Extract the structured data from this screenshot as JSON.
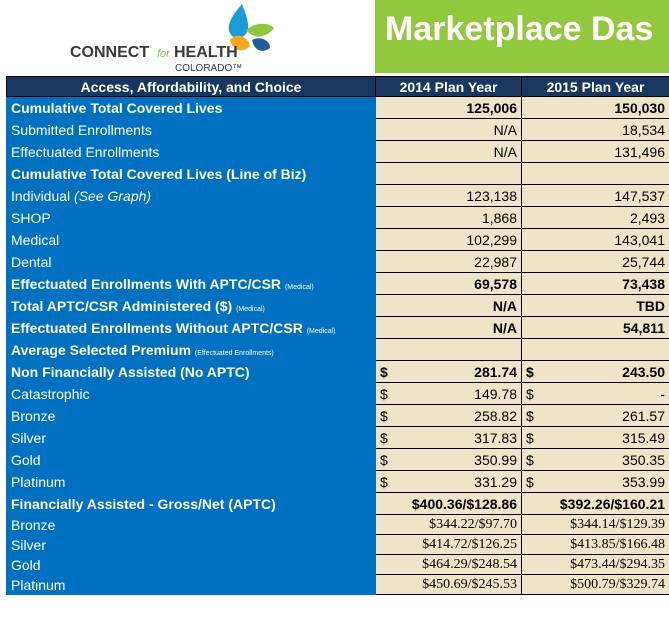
{
  "header": {
    "logo": {
      "connect": "CONNECT",
      "for": "for",
      "health": "HEALTH",
      "colorado": "COLORADO™"
    },
    "title": "Marketplace Das"
  },
  "table": {
    "columns": [
      "Access, Affordability, and Choice",
      "2014 Plan Year",
      "2015 Plan Year"
    ],
    "rows": [
      {
        "label": "Cumulative Total Covered Lives",
        "values": [
          "125,006",
          "150,030"
        ]
      },
      {
        "label": "Submitted Enrollments",
        "values": [
          "N/A",
          "18,534"
        ]
      },
      {
        "label": "Effectuated Enrollments",
        "values": [
          "N/A",
          "131,496"
        ]
      },
      {
        "label": "Cumulative Total Covered Lives (Line of Biz)"
      },
      {
        "label": "Individual",
        "label_italic": "(See Graph)",
        "values": [
          "123,138",
          "147,537"
        ]
      },
      {
        "label": "SHOP",
        "values": [
          "1,868",
          "2,493"
        ]
      },
      {
        "label": "Medical",
        "values": [
          "102,299",
          "143,041"
        ]
      },
      {
        "label": "Dental",
        "values": [
          "22,987",
          "25,744"
        ]
      },
      {
        "label": "Effectuated Enrollments With APTC/CSR",
        "note": "(Medical)",
        "values": [
          "69,578",
          "73,438"
        ]
      },
      {
        "label": "Total APTC/CSR Administered ($)",
        "note": "(Medical)",
        "values": [
          "N/A",
          "TBD"
        ]
      },
      {
        "label": "Effectuated Enrollments Without APTC/CSR",
        "note": "(Medical)",
        "values": [
          "N/A",
          "54,811"
        ]
      },
      {
        "label": "Average Selected Premium",
        "note": "(Effectuated Enrollments)"
      },
      {
        "label": "Non Financially Assisted (No APTC)",
        "values": [
          {
            "symbol": "$",
            "amount": "281.74"
          },
          {
            "symbol": "$",
            "amount": "243.50"
          }
        ]
      },
      {
        "label": "Catastrophic",
        "values": [
          {
            "symbol": "$",
            "amount": "149.78"
          },
          {
            "symbol": "$",
            "amount": "-"
          }
        ]
      },
      {
        "label": "Bronze",
        "values": [
          {
            "symbol": "$",
            "amount": "258.82"
          },
          {
            "symbol": "$",
            "amount": "261.57"
          }
        ]
      },
      {
        "label": "Silver",
        "values": [
          {
            "symbol": "$",
            "amount": "317.83"
          },
          {
            "symbol": "$",
            "amount": "315.49"
          }
        ]
      },
      {
        "label": "Gold",
        "values": [
          {
            "symbol": "$",
            "amount": "350.99"
          },
          {
            "symbol": "$",
            "amount": "350.35"
          }
        ]
      },
      {
        "label": "Platinum",
        "values": [
          {
            "symbol": "$",
            "amount": "331.29"
          },
          {
            "symbol": "$",
            "amount": "353.99"
          }
        ]
      },
      {
        "label": "Financially Assisted - Gross/Net (APTC)",
        "values": [
          "$400.36/$128.86",
          "$392.26/$160.21"
        ]
      },
      {
        "label": "Bronze",
        "values": [
          "$344.22/$97.70",
          "$344.14/$129.39"
        ]
      },
      {
        "label": "Silver",
        "values": [
          "$414.72/$126.25",
          "$413.85/$166.48"
        ]
      },
      {
        "label": "Gold",
        "values": [
          "$464.29/$248.54",
          "$473.44/$294.35"
        ]
      },
      {
        "label": "Platinum",
        "values": [
          "$450.69/$245.53",
          "$500.79/$329.74"
        ]
      }
    ]
  }
}
